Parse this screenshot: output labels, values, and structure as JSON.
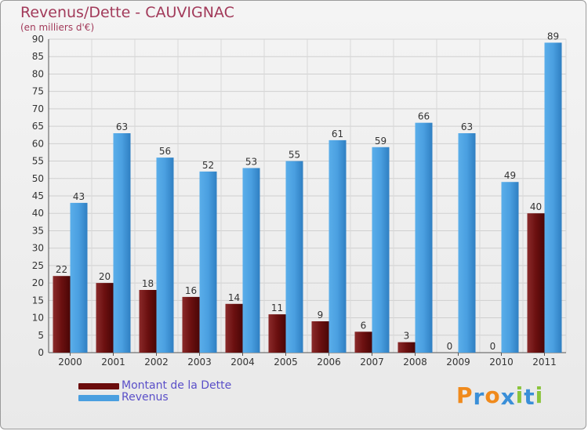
{
  "header": {
    "title": "Revenus/Dette - CAUVIGNAC",
    "subtitle": "(en milliers d'€)"
  },
  "chart_data": {
    "type": "bar",
    "categories": [
      "2000",
      "2001",
      "2002",
      "2003",
      "2004",
      "2005",
      "2006",
      "2007",
      "2008",
      "2009",
      "2010",
      "2011"
    ],
    "series": [
      {
        "name": "Montant de la Dette",
        "color": "#7a1a1a",
        "values": [
          22,
          20,
          18,
          16,
          14,
          11,
          9,
          6,
          3,
          0,
          0,
          40
        ]
      },
      {
        "name": "Revenus",
        "color": "#4a9fe0",
        "values": [
          43,
          63,
          56,
          52,
          53,
          55,
          61,
          59,
          66,
          63,
          49,
          89
        ]
      }
    ],
    "ylim": [
      0,
      90
    ],
    "ytick_step": 5,
    "yticks": [
      "0",
      "5",
      "10",
      "15",
      "20",
      "25",
      "30",
      "35",
      "40",
      "45",
      "50",
      "55",
      "60",
      "65",
      "70",
      "75",
      "80",
      "85",
      "90"
    ],
    "grid": true,
    "legend": "bottom-left",
    "data_labels": true
  },
  "legend": {
    "items": [
      {
        "label": "Montant de la Dette",
        "color": "#6b0c0c"
      },
      {
        "label": "Revenus",
        "color": "#4a9fe0"
      }
    ]
  },
  "logo": {
    "letters": [
      "P",
      "r",
      "o",
      "x",
      "i",
      "t",
      "i"
    ],
    "colors": [
      "#f08a1c",
      "#3a8fd8",
      "#f08a1c",
      "#3a8fd8",
      "#8bc43c",
      "#3a8fd8",
      "#8bc43c"
    ]
  }
}
